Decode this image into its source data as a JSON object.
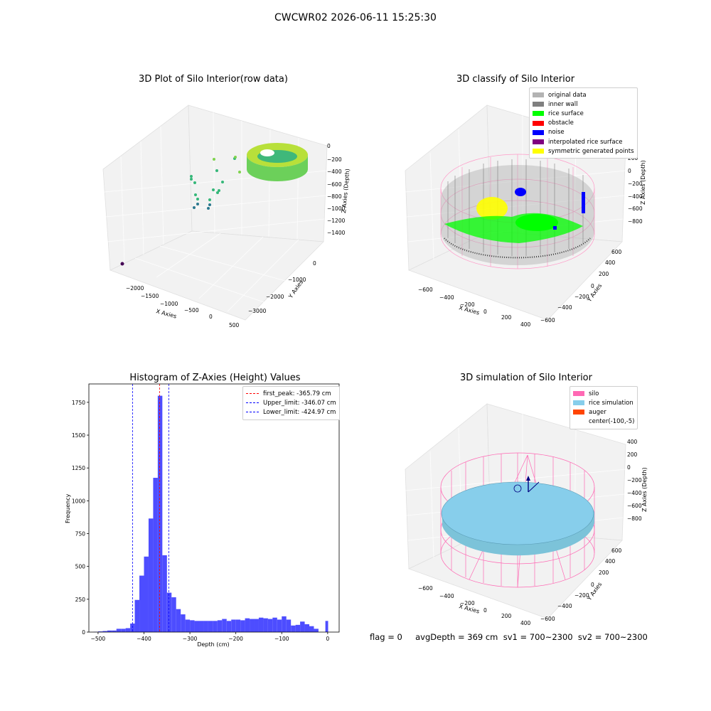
{
  "suptitle": "CWCWR02 2026-06-11 15:25:30",
  "status_line": "flag = 0     avgDepth = 369 cm  sv1 = 700~2300  sv2 = 700~2300",
  "panel_raw": {
    "title": "3D Plot of Silo Interior(row data)",
    "xlabel": "X Axies",
    "ylabel": "Y Axies",
    "zlabel": "Z Axies (Depth)",
    "xticks": [
      "−2000",
      "−1500",
      "−1000",
      "−500",
      "0",
      "500"
    ],
    "yticks": [
      "−3000",
      "−2000",
      "−1000",
      "0"
    ],
    "zticks": [
      "0",
      "−200",
      "−400",
      "−600",
      "−800",
      "−1000",
      "−1200",
      "−1400"
    ]
  },
  "panel_classify": {
    "title": "3D classify of Silo Interior",
    "xlabel": "X Axies",
    "ylabel": "Y Axies",
    "zlabel": "Z Axies (Depth)",
    "xticks": [
      "−600",
      "−400",
      "−200",
      "0",
      "200",
      "400"
    ],
    "yticks": [
      "−600",
      "−400",
      "−200",
      "0",
      "200",
      "400",
      "600"
    ],
    "zticks": [
      "200",
      "0",
      "−200",
      "−400",
      "−600",
      "−800"
    ],
    "legend": [
      {
        "label": "original data",
        "color": "#b3b3b3"
      },
      {
        "label": "inner wall",
        "color": "#808080"
      },
      {
        "label": "rice surface",
        "color": "#00ff00"
      },
      {
        "label": "obstacle",
        "color": "#ff0000"
      },
      {
        "label": "noise",
        "color": "#0000ff"
      },
      {
        "label": "interpolated rice surface",
        "color": "#800080"
      },
      {
        "label": "symmetric generated points",
        "color": "#ffff00"
      }
    ]
  },
  "panel_sim": {
    "title": "3D simulation of Silo Interior",
    "xlabel": "X Axies",
    "ylabel": "Y Axies",
    "zlabel": "Z Axies (Depth)",
    "xticks": [
      "−600",
      "−400",
      "−200",
      "0",
      "200",
      "400"
    ],
    "yticks": [
      "−600",
      "−400",
      "−200",
      "0",
      "200",
      "400",
      "600"
    ],
    "zticks": [
      "400",
      "200",
      "0",
      "−200",
      "−400",
      "−600",
      "−800"
    ],
    "legend": [
      {
        "label": "silo",
        "color": "#ff69b4"
      },
      {
        "label": "rice simulation",
        "color": "#87ceeb"
      },
      {
        "label": "auger",
        "color": "#ff4500"
      },
      {
        "label": "center(-100,-5)",
        "color": ""
      }
    ]
  },
  "chart_data": {
    "type": "bar",
    "title": "Histogram of Z-Axies (Height) Values",
    "xlabel": "Depth (cm)",
    "ylabel": "Frequency",
    "xlim": [
      -520,
      25
    ],
    "ylim": [
      0,
      1890
    ],
    "xticks": [
      -500,
      -400,
      -300,
      -200,
      -100,
      0
    ],
    "yticks": [
      0,
      250,
      500,
      750,
      1000,
      1250,
      1500,
      1750
    ],
    "bar_color": "#4d4dff",
    "bin_width": 10,
    "bins": [
      {
        "x0": -510,
        "h": 2
      },
      {
        "x0": -500,
        "h": 5
      },
      {
        "x0": -490,
        "h": 8
      },
      {
        "x0": -480,
        "h": 12
      },
      {
        "x0": -470,
        "h": 12
      },
      {
        "x0": -460,
        "h": 25
      },
      {
        "x0": -450,
        "h": 25
      },
      {
        "x0": -440,
        "h": 30
      },
      {
        "x0": -430,
        "h": 65
      },
      {
        "x0": -420,
        "h": 245
      },
      {
        "x0": -410,
        "h": 430
      },
      {
        "x0": -400,
        "h": 575
      },
      {
        "x0": -390,
        "h": 865
      },
      {
        "x0": -380,
        "h": 1175
      },
      {
        "x0": -370,
        "h": 1800
      },
      {
        "x0": -360,
        "h": 585
      },
      {
        "x0": -350,
        "h": 300
      },
      {
        "x0": -340,
        "h": 265
      },
      {
        "x0": -330,
        "h": 175
      },
      {
        "x0": -320,
        "h": 135
      },
      {
        "x0": -310,
        "h": 95
      },
      {
        "x0": -300,
        "h": 90
      },
      {
        "x0": -290,
        "h": 85
      },
      {
        "x0": -280,
        "h": 85
      },
      {
        "x0": -270,
        "h": 85
      },
      {
        "x0": -260,
        "h": 85
      },
      {
        "x0": -250,
        "h": 85
      },
      {
        "x0": -240,
        "h": 90
      },
      {
        "x0": -230,
        "h": 100
      },
      {
        "x0": -220,
        "h": 85
      },
      {
        "x0": -210,
        "h": 95
      },
      {
        "x0": -200,
        "h": 95
      },
      {
        "x0": -190,
        "h": 90
      },
      {
        "x0": -180,
        "h": 105
      },
      {
        "x0": -170,
        "h": 100
      },
      {
        "x0": -160,
        "h": 100
      },
      {
        "x0": -150,
        "h": 110
      },
      {
        "x0": -140,
        "h": 105
      },
      {
        "x0": -130,
        "h": 100
      },
      {
        "x0": -120,
        "h": 110
      },
      {
        "x0": -110,
        "h": 95
      },
      {
        "x0": -100,
        "h": 120
      },
      {
        "x0": -90,
        "h": 95
      },
      {
        "x0": -80,
        "h": 50
      },
      {
        "x0": -70,
        "h": 55
      },
      {
        "x0": -60,
        "h": 80
      },
      {
        "x0": -50,
        "h": 60
      },
      {
        "x0": -40,
        "h": 45
      },
      {
        "x0": -30,
        "h": 25
      },
      {
        "x0": -20,
        "h": 0
      },
      {
        "x0": -10,
        "h": 0
      },
      {
        "x0": -5,
        "h": 85
      }
    ],
    "vlines": [
      {
        "x": -365.79,
        "color": "#ff0000",
        "label": "first_peak: -365.79 cm"
      },
      {
        "x": -346.07,
        "color": "#0000ff",
        "label": "Upper_limit: -346.07 cm"
      },
      {
        "x": -424.97,
        "color": "#0000ff",
        "label": "Lower_limit: -424.97 cm"
      }
    ],
    "legend_position": "top-right",
    "grid": false
  }
}
